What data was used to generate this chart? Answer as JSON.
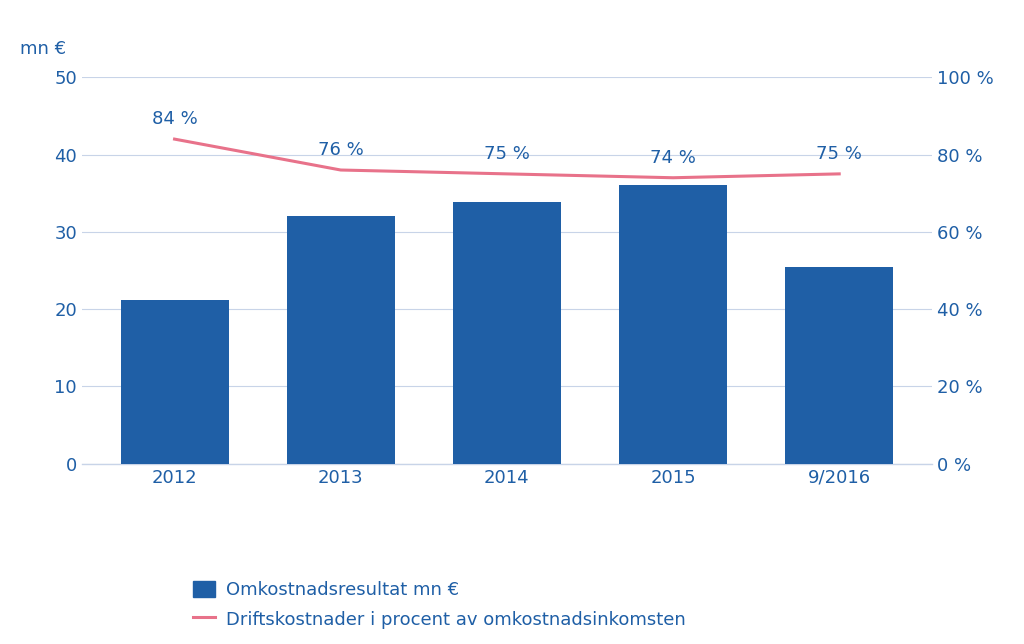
{
  "categories": [
    "2012",
    "2013",
    "2014",
    "2015",
    "9/2016"
  ],
  "bar_values": [
    21.2,
    32.0,
    33.8,
    36.0,
    25.5
  ],
  "line_values": [
    84,
    76,
    75,
    74,
    75
  ],
  "bar_color": "#1F5FA6",
  "line_color": "#E8728A",
  "ylabel_left_label": "mn €",
  "ylim_left": [
    0,
    50
  ],
  "yticks_left": [
    0,
    10,
    20,
    30,
    40,
    50
  ],
  "ylim_right": [
    0,
    100
  ],
  "yticks_right": [
    0,
    20,
    40,
    60,
    80,
    100
  ],
  "yticklabels_right": [
    "0 %",
    "20 %",
    "40 %",
    "60 %",
    "80 %",
    "100 %"
  ],
  "pct_labels": [
    "84 %",
    "76 %",
    "75 %",
    "74 %",
    "75 %"
  ],
  "legend_bar": "Omkostnadsresultat mn €",
  "legend_line": "Driftskostnader i procent av omkostnadsinkomsten",
  "axis_color": "#1F5FA6",
  "background_color": "#ffffff",
  "grid_color": "#c8d4e8"
}
